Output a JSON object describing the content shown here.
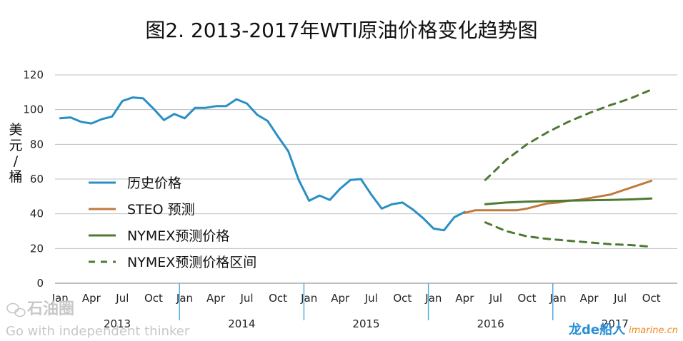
{
  "title": "图2. 2013-2017年WTI原油价格变化趋势图",
  "watermark": {
    "brand_cn": "石油圈",
    "slogan": "Go with independent thinker",
    "bottom_brand": "龙de船人",
    "bottom_site": "imarine.cn"
  },
  "colors": {
    "history": "#2a8fc4",
    "steo": "#c07a3d",
    "nymex": "#4e7a33",
    "nymex_range": "#4e7a33",
    "grid": "#bfbfbf",
    "year_divider": "#4aa6d8"
  },
  "chart_data": {
    "type": "line",
    "title": "图2. 2013-2017年WTI原油价格变化趋势图",
    "ylabel": "美元/桶",
    "ylim": [
      0,
      120
    ],
    "yticks": [
      0,
      20,
      40,
      60,
      80,
      100,
      120
    ],
    "grid": true,
    "legend_position": "left-middle",
    "x_axis": {
      "start": "2013-01",
      "end": "2017-12",
      "month_ticks": [
        "Jan",
        "Apr",
        "Jul",
        "Oct"
      ],
      "years": [
        "2013",
        "2014",
        "2015",
        "2016",
        "2017"
      ]
    },
    "series": [
      {
        "name": "历史价格",
        "style": "solid",
        "points": [
          [
            "2013-01",
            95
          ],
          [
            "2013-02",
            95.5
          ],
          [
            "2013-03",
            93
          ],
          [
            "2013-04",
            92
          ],
          [
            "2013-05",
            94.5
          ],
          [
            "2013-06",
            96
          ],
          [
            "2013-07",
            105
          ],
          [
            "2013-08",
            107
          ],
          [
            "2013-09",
            106.5
          ],
          [
            "2013-10",
            100.5
          ],
          [
            "2013-11",
            94
          ],
          [
            "2013-12",
            97.5
          ],
          [
            "2014-01",
            95
          ],
          [
            "2014-02",
            101
          ],
          [
            "2014-03",
            101
          ],
          [
            "2014-04",
            102
          ],
          [
            "2014-05",
            102
          ],
          [
            "2014-06",
            106
          ],
          [
            "2014-07",
            103.5
          ],
          [
            "2014-08",
            97
          ],
          [
            "2014-09",
            93.5
          ],
          [
            "2014-10",
            84.5
          ],
          [
            "2014-11",
            76
          ],
          [
            "2014-12",
            59.5
          ],
          [
            "2015-01",
            47.5
          ],
          [
            "2015-02",
            50.5
          ],
          [
            "2015-03",
            48
          ],
          [
            "2015-04",
            54.5
          ],
          [
            "2015-05",
            59.5
          ],
          [
            "2015-06",
            60
          ],
          [
            "2015-07",
            51
          ],
          [
            "2015-08",
            43
          ],
          [
            "2015-09",
            45.5
          ],
          [
            "2015-10",
            46.5
          ],
          [
            "2015-11",
            42.5
          ],
          [
            "2015-12",
            37.5
          ],
          [
            "2016-01",
            31.5
          ],
          [
            "2016-02",
            30.5
          ],
          [
            "2016-03",
            38
          ],
          [
            "2016-04",
            41
          ]
        ]
      },
      {
        "name": "STEO 预测",
        "style": "solid",
        "points": [
          [
            "2016-04",
            40.5
          ],
          [
            "2016-05",
            42
          ],
          [
            "2016-06",
            42
          ],
          [
            "2016-07",
            42
          ],
          [
            "2016-08",
            42
          ],
          [
            "2016-09",
            42
          ],
          [
            "2016-10",
            43
          ],
          [
            "2016-11",
            44.5
          ],
          [
            "2016-12",
            46
          ],
          [
            "2017-01",
            46.5
          ],
          [
            "2017-02",
            47.5
          ],
          [
            "2017-03",
            48
          ],
          [
            "2017-04",
            49
          ],
          [
            "2017-05",
            50
          ],
          [
            "2017-06",
            51
          ],
          [
            "2017-07",
            53
          ],
          [
            "2017-08",
            55
          ],
          [
            "2017-09",
            57
          ],
          [
            "2017-10",
            59
          ]
        ]
      },
      {
        "name": "NYMEX预测价格",
        "style": "solid",
        "points": [
          [
            "2016-06",
            45.5
          ],
          [
            "2016-08",
            46.5
          ],
          [
            "2016-10",
            47
          ],
          [
            "2016-12",
            47.3
          ],
          [
            "2017-02",
            47.6
          ],
          [
            "2017-04",
            47.8
          ],
          [
            "2017-06",
            48
          ],
          [
            "2017-08",
            48.3
          ],
          [
            "2017-10",
            48.8
          ]
        ]
      },
      {
        "name": "NYMEX预测价格区间",
        "style": "dashed",
        "points": [
          [
            "2016-06",
            59.5
          ],
          [
            "2016-08",
            71
          ],
          [
            "2016-10",
            80
          ],
          [
            "2016-12",
            87
          ],
          [
            "2017-02",
            93
          ],
          [
            "2017-04",
            98
          ],
          [
            "2017-06",
            102.5
          ],
          [
            "2017-08",
            106.5
          ],
          [
            "2017-10",
            111.5
          ]
        ]
      },
      {
        "name": "NYMEX预测价格区间",
        "legend": false,
        "style": "dashed",
        "points": [
          [
            "2016-06",
            35
          ],
          [
            "2016-08",
            30
          ],
          [
            "2016-10",
            27
          ],
          [
            "2016-12",
            25.5
          ],
          [
            "2017-02",
            24.5
          ],
          [
            "2017-04",
            23.5
          ],
          [
            "2017-06",
            22.5
          ],
          [
            "2017-08",
            22
          ],
          [
            "2017-10",
            21
          ]
        ]
      }
    ]
  }
}
